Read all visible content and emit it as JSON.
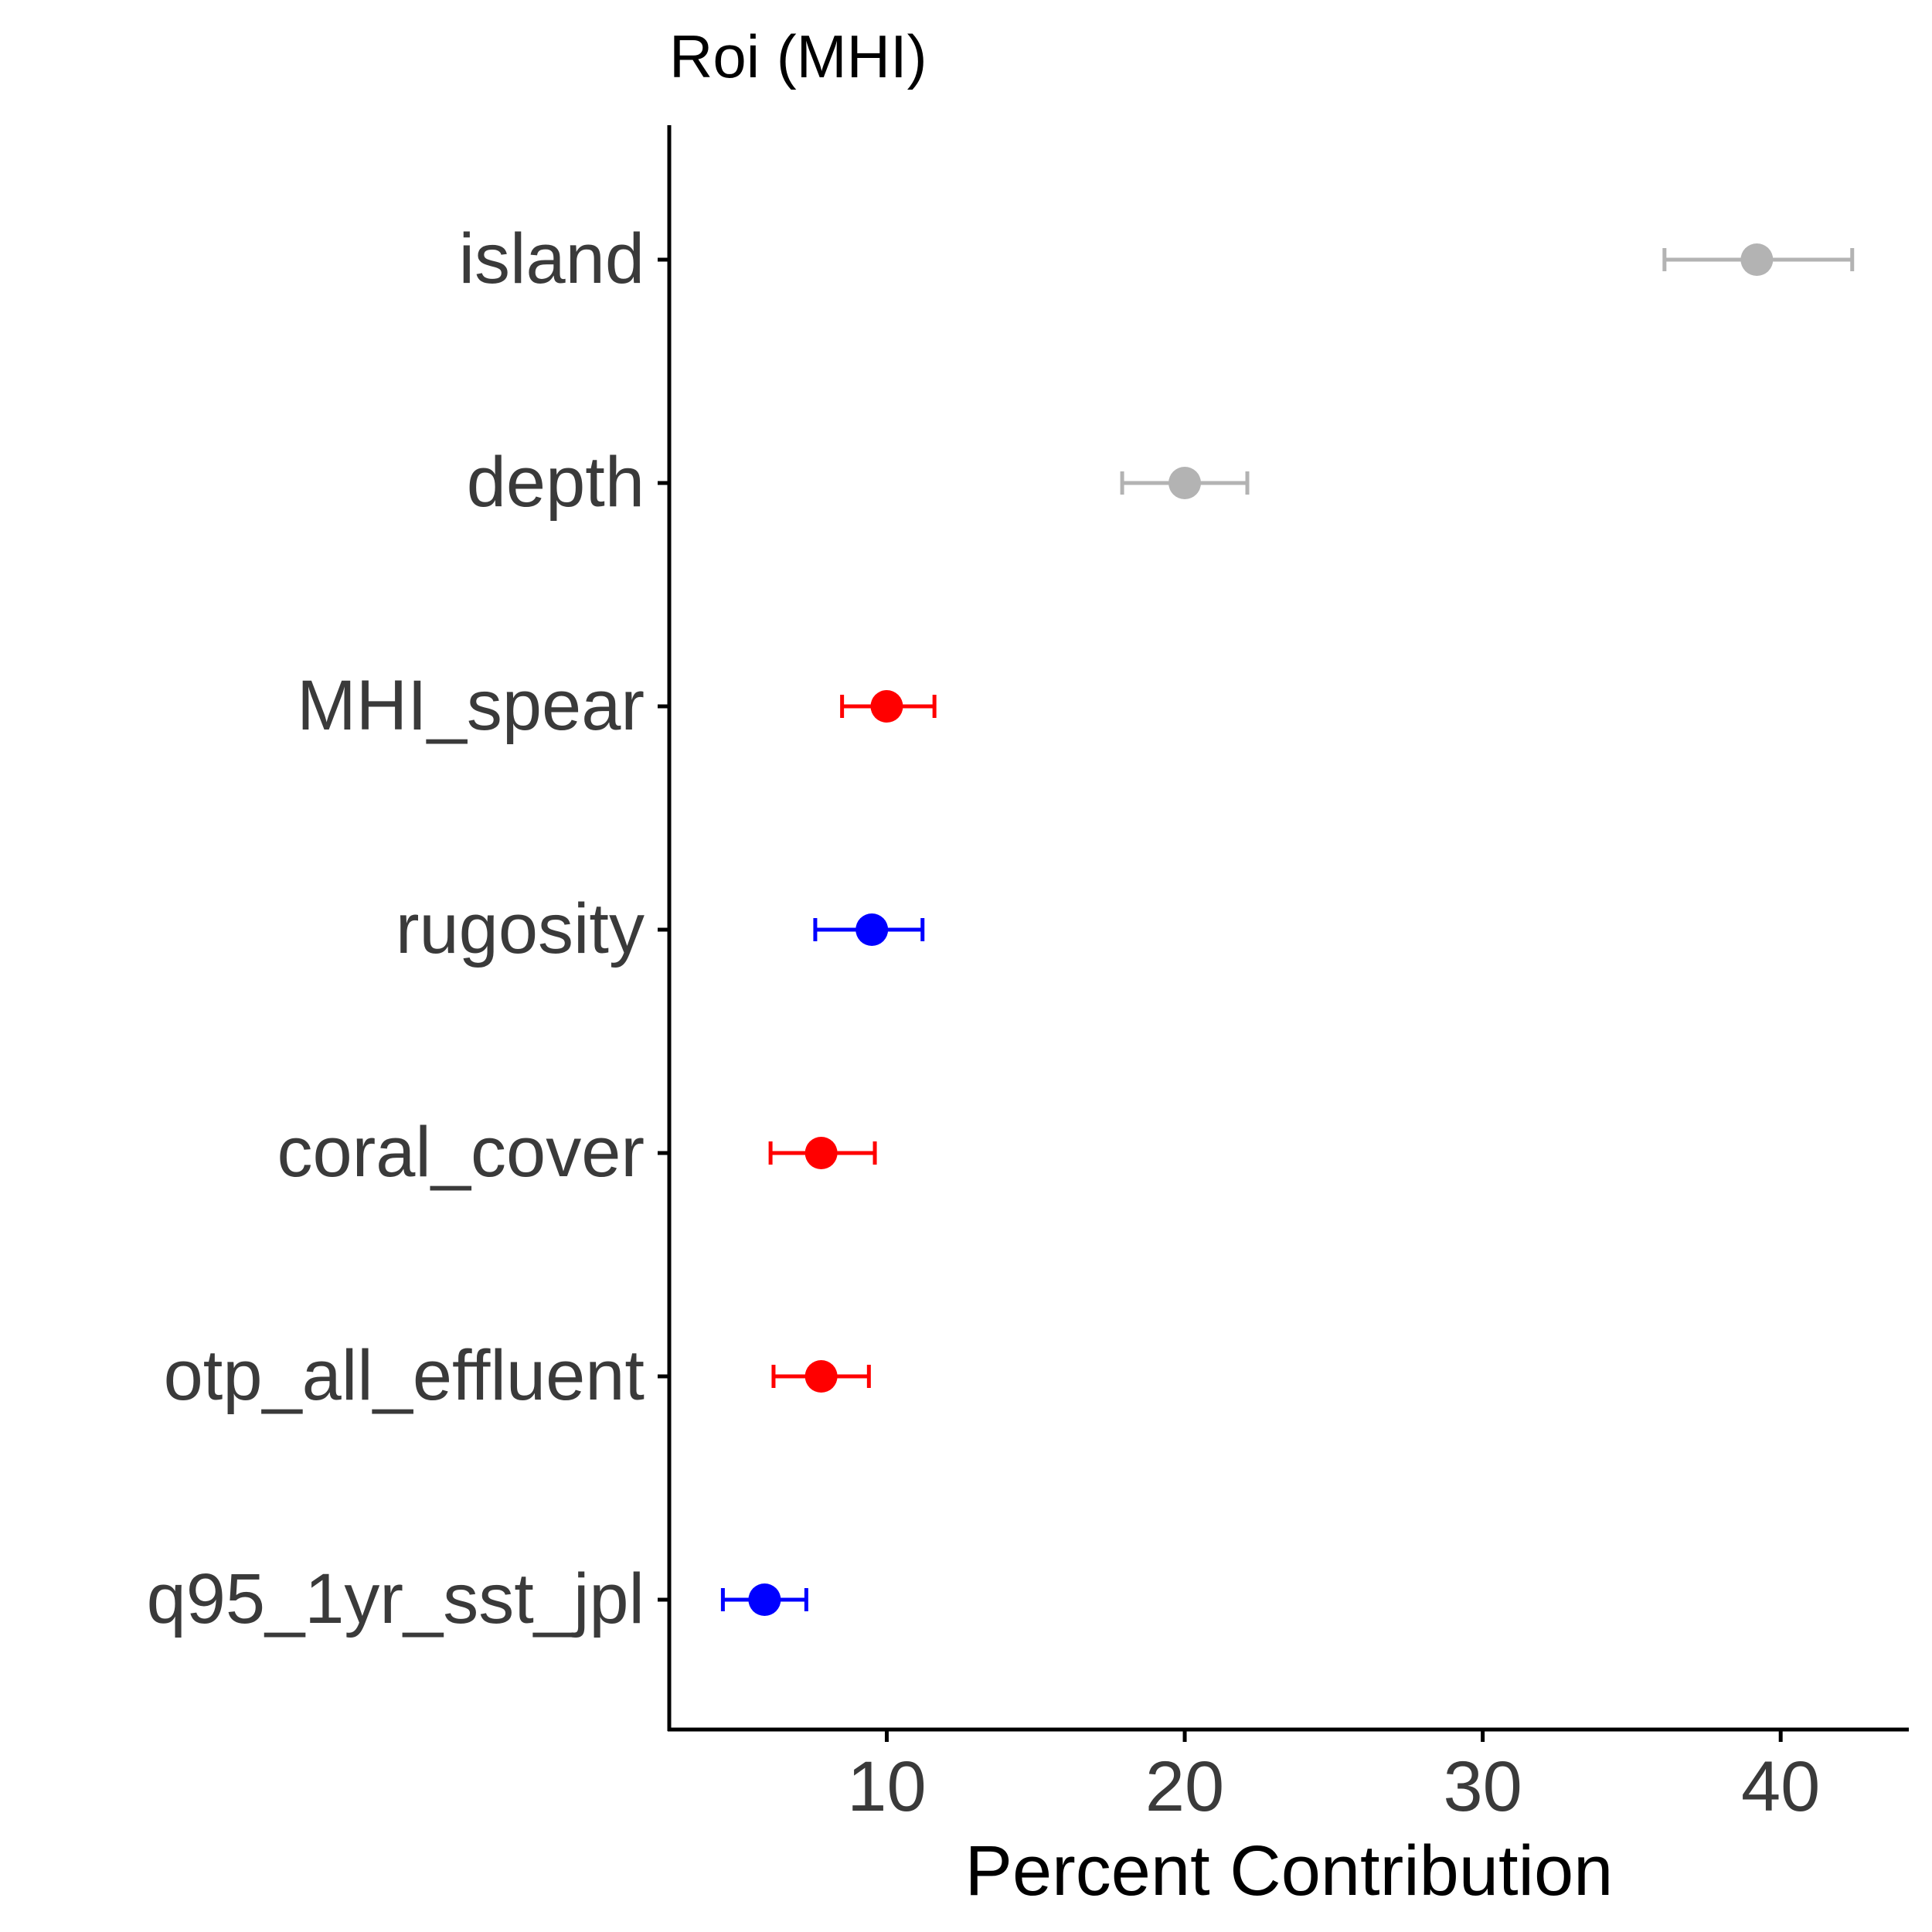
{
  "chart_data": {
    "type": "scatter",
    "title": "Roi (MHI)",
    "xlabel": "Percent Contribution",
    "ylabel": "",
    "xlim": [
      2.7,
      44.3
    ],
    "xticks": [
      10,
      20,
      30,
      40
    ],
    "grid": false,
    "categories": [
      "island",
      "depth",
      "MHI_spear",
      "rugosity",
      "coral_cover",
      "otp_all_effluent",
      "q95_1yr_sst_jpl"
    ],
    "points": [
      {
        "category": "island",
        "value": 39.2,
        "lower": 36.1,
        "upper": 42.4,
        "color": "#b3b3b3"
      },
      {
        "category": "depth",
        "value": 20.0,
        "lower": 17.9,
        "upper": 22.1,
        "color": "#b3b3b3"
      },
      {
        "category": "MHI_spear",
        "value": 10.0,
        "lower": 8.5,
        "upper": 11.6,
        "color": "#ff0000"
      },
      {
        "category": "rugosity",
        "value": 9.5,
        "lower": 7.6,
        "upper": 11.2,
        "color": "#0000ff"
      },
      {
        "category": "coral_cover",
        "value": 7.8,
        "lower": 6.1,
        "upper": 9.6,
        "color": "#ff0000"
      },
      {
        "category": "otp_all_effluent",
        "value": 7.8,
        "lower": 6.2,
        "upper": 9.4,
        "color": "#ff0000"
      },
      {
        "category": "q95_1yr_sst_jpl",
        "value": 5.9,
        "lower": 4.5,
        "upper": 7.3,
        "color": "#0000ff"
      }
    ]
  }
}
